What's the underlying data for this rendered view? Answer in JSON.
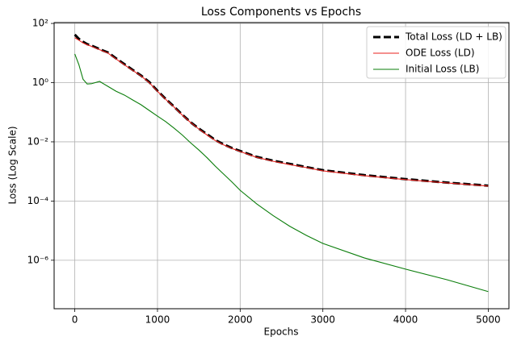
{
  "chart_data": {
    "type": "line",
    "title": "Loss Components vs Epochs",
    "x_label": "Epochs",
    "y_label": "Loss (Log Scale)",
    "log_y": true,
    "grid": true,
    "legend": "upper right",
    "x": [
      0,
      50,
      100,
      150,
      200,
      300,
      400,
      500,
      600,
      700,
      800,
      900,
      1000,
      1100,
      1200,
      1300,
      1400,
      1500,
      1600,
      1700,
      1800,
      1900,
      2000,
      2200,
      2400,
      2600,
      2800,
      3000,
      3500,
      4000,
      4500,
      5000
    ],
    "series": [
      {
        "name": "Total Loss (LD + LB)",
        "color": "#000000",
        "dashed": true,
        "values": [
          42,
          30,
          24,
          20,
          18,
          13.5,
          10.5,
          6.6,
          4.2,
          2.7,
          1.75,
          1.05,
          0.53,
          0.28,
          0.155,
          0.083,
          0.046,
          0.028,
          0.018,
          0.0115,
          0.0082,
          0.0062,
          0.0049,
          0.0031,
          0.0023,
          0.0018,
          0.0014,
          0.0011,
          0.00075,
          0.00055,
          0.00042,
          0.00033
        ]
      },
      {
        "name": "ODE Loss (LD)",
        "color": "#e8201c",
        "dashed": false,
        "values": [
          33,
          27,
          22,
          19,
          17,
          13,
          10,
          6.3,
          4,
          2.6,
          1.7,
          1,
          0.51,
          0.27,
          0.15,
          0.08,
          0.045,
          0.027,
          0.017,
          0.011,
          0.0079,
          0.006,
          0.0047,
          0.003,
          0.0022,
          0.0017,
          0.00135,
          0.00105,
          0.00072,
          0.00053,
          0.00041,
          0.00032
        ]
      },
      {
        "name": "Initial Loss (LB)",
        "color": "#0a7d0a",
        "dashed": false,
        "values": [
          9.3,
          4,
          1.3,
          0.9,
          0.92,
          1.1,
          0.75,
          0.51,
          0.38,
          0.26,
          0.18,
          0.115,
          0.074,
          0.048,
          0.029,
          0.017,
          0.0093,
          0.0053,
          0.0029,
          0.0015,
          0.00081,
          0.00044,
          0.00023,
          8e-05,
          3.2e-05,
          1.4e-05,
          6.9e-06,
          3.7e-06,
          1.2e-06,
          5e-07,
          2.2e-07,
          8.7e-08
        ]
      }
    ],
    "xlim": [
      -250,
      5250
    ],
    "xticks": [
      0,
      1000,
      2000,
      3000,
      4000,
      5000
    ],
    "ylim": [
      2.3e-08,
      107
    ],
    "yticks": [
      {
        "value": 100,
        "label": "10²"
      },
      {
        "value": 1,
        "label": "10⁰"
      },
      {
        "value": 0.01,
        "label": "10⁻²"
      },
      {
        "value": 0.0001,
        "label": "10⁻⁴"
      },
      {
        "value": 1e-06,
        "label": "10⁻⁶"
      }
    ]
  }
}
